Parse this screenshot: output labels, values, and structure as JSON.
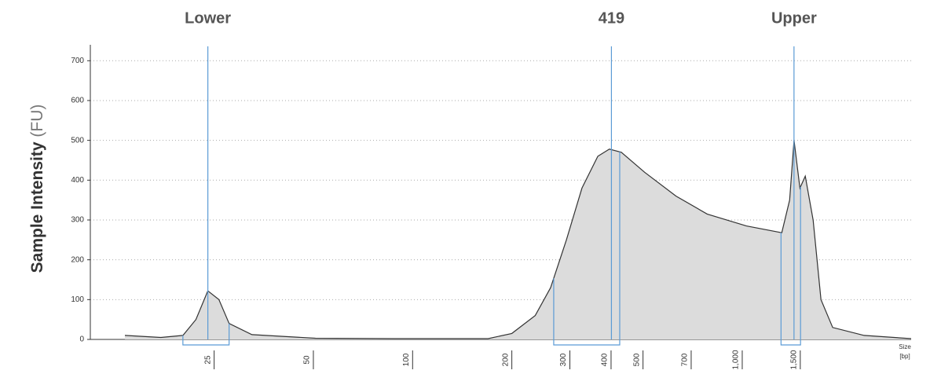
{
  "chart_data": {
    "type": "area",
    "y_label": "Sample Intensity",
    "y_unit": "(FU)",
    "x_label": "Size",
    "x_unit": "[bp]",
    "x": [
      14,
      18,
      21,
      23,
      25,
      27,
      29,
      34,
      53,
      92,
      177,
      209,
      246,
      274,
      306,
      341,
      381,
      413,
      449,
      528,
      658,
      818,
      1076,
      1377,
      1455,
      1500,
      1563,
      1623,
      1714,
      1811,
      1965,
      2447,
      3400
    ],
    "values": [
      10,
      5,
      10,
      50,
      122,
      100,
      40,
      12,
      3,
      2,
      2,
      15,
      60,
      130,
      250,
      380,
      460,
      478,
      470,
      420,
      360,
      315,
      285,
      268,
      350,
      500,
      380,
      410,
      300,
      100,
      30,
      10,
      2
    ],
    "color": "#dcdcdc",
    "line_color": "#333333",
    "markers": [
      {
        "label": "Lower",
        "x": 25
      },
      {
        "label": "419",
        "x": 419
      },
      {
        "label": "Upper",
        "x": 1500
      }
    ],
    "marker_color": "#5b9bd5",
    "ranges": [
      [
        21,
        29
      ],
      [
        280,
        444
      ],
      [
        1370,
        1570
      ]
    ],
    "xscale": "log",
    "xlim": [
      11,
      3400
    ],
    "xticks": [
      25,
      50,
      100,
      200,
      300,
      400,
      500,
      700,
      {
        "value": 1000,
        "label": "1,000"
      },
      {
        "value": 1500,
        "label": "1,500"
      }
    ],
    "ylim": [
      0,
      740
    ],
    "yticks": [
      0,
      100,
      200,
      300,
      400,
      500,
      600,
      700
    ],
    "grid": true
  }
}
